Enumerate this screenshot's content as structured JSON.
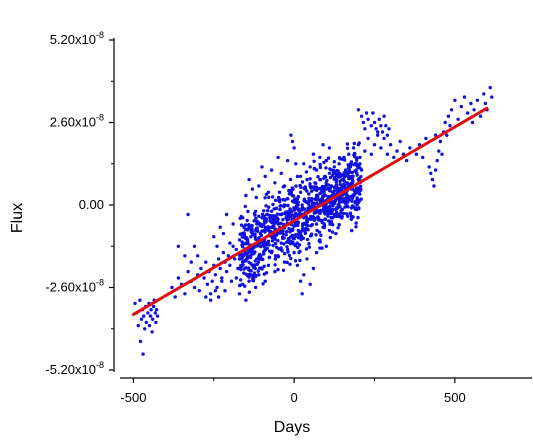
{
  "chart_data": {
    "type": "scatter",
    "xlabel": "Days",
    "ylabel": "Flux",
    "xlim": [
      -520,
      740
    ],
    "ylim": [
      -5.2e-08,
      5.2e-08
    ],
    "x_ticks": [
      {
        "value": -500,
        "label": "-500"
      },
      {
        "value": 0,
        "label": "0"
      },
      {
        "value": 500,
        "label": "500"
      }
    ],
    "x_minor_ticks": [
      -250,
      250
    ],
    "y_ticks": [
      {
        "value": 5.2e-08,
        "mantissa": "5.20x10",
        "exponent": "-8"
      },
      {
        "value": 2.6e-08,
        "mantissa": "2.60x10",
        "exponent": "-8"
      },
      {
        "value": 0,
        "mantissa": "0.00",
        "exponent": ""
      },
      {
        "value": -2.6e-08,
        "mantissa": "-2.60x10",
        "exponent": "-8"
      },
      {
        "value": -5.2e-08,
        "mantissa": "-5.20x10",
        "exponent": "-8"
      }
    ],
    "y_minor_ticks": [
      3.9e-08,
      1.3e-08,
      -1.3e-08,
      -3.9e-08
    ],
    "grid": false,
    "colors": {
      "points": "#1010e0",
      "fit_line": "#e01010",
      "axes": "#000000"
    },
    "series": [
      {
        "type": "scatter",
        "points": [
          [
            -495,
            -3.1e-08
          ],
          [
            -490,
            -3.4e-08
          ],
          [
            -485,
            -3.8e-08
          ],
          [
            -480,
            -3e-08
          ],
          [
            -478,
            -4.3e-08
          ],
          [
            -475,
            -3.6e-08
          ],
          [
            -472,
            -3.3e-08
          ],
          [
            -470,
            -4.7e-08
          ],
          [
            -468,
            -3.5e-08
          ],
          [
            -465,
            -3.9e-08
          ],
          [
            -462,
            -3.2e-08
          ],
          [
            -460,
            -3.7e-08
          ],
          [
            -455,
            -3.4e-08
          ],
          [
            -452,
            -3.1e-08
          ],
          [
            -450,
            -3.8e-08
          ],
          [
            -447,
            -3.5e-08
          ],
          [
            -445,
            -3.3e-08
          ],
          [
            -442,
            -4e-08
          ],
          [
            -440,
            -3.6e-08
          ],
          [
            -437,
            -3.2e-08
          ],
          [
            -435,
            -3e-08
          ],
          [
            -432,
            -3.4e-08
          ],
          [
            -430,
            -3.7e-08
          ],
          [
            -428,
            -3.3e-08
          ],
          [
            -425,
            -3.5e-08
          ],
          [
            -380,
            -2.6e-08
          ],
          [
            -370,
            -2.9e-08
          ],
          [
            -360,
            -2.3e-08
          ],
          [
            -350,
            -2.5e-08
          ],
          [
            -340,
            -2.8e-08
          ],
          [
            -330,
            -2.1e-08
          ],
          [
            -320,
            -2.4e-08
          ],
          [
            -310,
            -2.6e-08
          ],
          [
            -300,
            -2.2e-08
          ],
          [
            -295,
            -2.7e-08
          ],
          [
            -290,
            -2e-08
          ],
          [
            -280,
            -2.3e-08
          ],
          [
            -275,
            -1.8e-08
          ],
          [
            -270,
            -2.5e-08
          ],
          [
            -265,
            -2.1e-08
          ],
          [
            -260,
            -2.8e-08
          ],
          [
            -255,
            -2.4e-08
          ],
          [
            -250,
            -1.9e-08
          ],
          [
            -245,
            -2.2e-08
          ],
          [
            -240,
            -2.6e-08
          ],
          [
            -235,
            -1.7e-08
          ],
          [
            -230,
            -2e-08
          ],
          [
            -225,
            -2.3e-08
          ],
          [
            -220,
            -1.5e-08
          ],
          [
            -215,
            -1.8e-08
          ],
          [
            -210,
            -2.1e-08
          ],
          [
            -205,
            -1.6e-08
          ],
          [
            -200,
            -1.9e-08
          ],
          [
            -195,
            -2.4e-08
          ],
          [
            -190,
            -1.3e-08
          ],
          [
            -185,
            -1.7e-08
          ],
          [
            -180,
            -1.4e-08
          ],
          [
            -175,
            -2e-08
          ],
          [
            -170,
            -1.1e-08
          ],
          [
            -165,
            -1.5e-08
          ],
          [
            -160,
            -1.8e-08
          ],
          [
            -155,
            -9e-09
          ],
          [
            -150,
            -1.2e-08
          ],
          [
            -145,
            -1.6e-08
          ],
          [
            -140,
            -7e-09
          ],
          [
            -135,
            -1e-08
          ],
          [
            -130,
            -1.4e-08
          ],
          [
            -125,
            -5e-09
          ],
          [
            -120,
            -8e-09
          ],
          [
            -115,
            -1.2e-08
          ],
          [
            -110,
            -6e-09
          ],
          [
            -105,
            -9e-09
          ],
          [
            -100,
            -4e-09
          ],
          [
            -95,
            -1.1e-08
          ],
          [
            -90,
            -7e-09
          ],
          [
            -85,
            -3e-09
          ],
          [
            -80,
            -8e-09
          ],
          [
            -75,
            -5e-09
          ],
          [
            -70,
            -2e-09
          ],
          [
            -65,
            -9e-09
          ],
          [
            -60,
            -4e-09
          ],
          [
            -55,
            -1e-09
          ],
          [
            -50,
            -6e-09
          ],
          [
            -45,
            1e-09
          ],
          [
            -40,
            -3e-09
          ],
          [
            -35,
            -7e-09
          ],
          [
            -30,
            0.0
          ],
          [
            -25,
            -4e-09
          ],
          [
            -20,
            2e-09
          ],
          [
            -15,
            -2e-09
          ],
          [
            -10,
            -6e-09
          ],
          [
            -5,
            3e-09
          ],
          [
            0,
            -1e-09
          ],
          [
            5,
            -5e-09
          ],
          [
            10,
            2e-09
          ],
          [
            15,
            -3e-09
          ],
          [
            20,
            4e-09
          ],
          [
            25,
            0.0
          ],
          [
            30,
            -4e-09
          ],
          [
            35,
            5e-09
          ],
          [
            40,
            1e-09
          ],
          [
            45,
            -2e-09
          ],
          [
            50,
            6e-09
          ],
          [
            55,
            2e-09
          ],
          [
            60,
            -1e-09
          ],
          [
            65,
            7e-09
          ],
          [
            70,
            3e-09
          ],
          [
            75,
            0.0
          ],
          [
            80,
            8e-09
          ],
          [
            85,
            4e-09
          ],
          [
            90,
            1e-09
          ],
          [
            95,
            9e-09
          ],
          [
            100,
            5e-09
          ],
          [
            105,
            2e-09
          ],
          [
            110,
            1e-08
          ],
          [
            115,
            6e-09
          ],
          [
            120,
            3e-09
          ],
          [
            125,
            1.2e-08
          ],
          [
            130,
            8e-09
          ],
          [
            135,
            4e-09
          ],
          [
            140,
            1.3e-08
          ],
          [
            145,
            9e-09
          ],
          [
            150,
            6e-09
          ],
          [
            155,
            1.5e-08
          ],
          [
            160,
            1.1e-08
          ],
          [
            165,
            7e-09
          ],
          [
            170,
            1.6e-08
          ],
          [
            175,
            1.2e-08
          ],
          [
            180,
            9e-09
          ],
          [
            185,
            1.8e-08
          ],
          [
            190,
            1.3e-08
          ],
          [
            195,
            1e-08
          ],
          [
            200,
            1.9e-08
          ],
          [
            205,
            1.5e-08
          ],
          [
            210,
            1.1e-08
          ],
          [
            -160,
            -4e-09
          ],
          [
            -150,
            3e-09
          ],
          [
            -140,
            8e-09
          ],
          [
            -130,
            5e-09
          ],
          [
            -120,
            -2e-09
          ],
          [
            -110,
            6e-09
          ],
          [
            -100,
            1.2e-08
          ],
          [
            -90,
            9e-09
          ],
          [
            -80,
            4e-09
          ],
          [
            -70,
            1.1e-08
          ],
          [
            -60,
            7e-09
          ],
          [
            -50,
            1.5e-08
          ],
          [
            -40,
            1e-08
          ],
          [
            -30,
            6e-09
          ],
          [
            -20,
            1.4e-08
          ],
          [
            -10,
            2.2e-08
          ],
          [
            -5,
            2e-08
          ],
          [
            0,
            1.8e-08
          ],
          [
            5,
            1.3e-08
          ],
          [
            10,
            9e-09
          ],
          [
            -220,
            -9e-09
          ],
          [
            -210,
            -3e-09
          ],
          [
            -200,
            -1.2e-08
          ],
          [
            -190,
            -6e-09
          ],
          [
            -180,
            -2.3e-08
          ],
          [
            -170,
            -2.8e-08
          ],
          [
            -160,
            -2.5e-08
          ],
          [
            -150,
            -3e-08
          ],
          [
            -140,
            -2.4e-08
          ],
          [
            -130,
            -1.9e-08
          ],
          [
            -120,
            -2.6e-08
          ],
          [
            -110,
            -2.2e-08
          ],
          [
            -100,
            -1.7e-08
          ],
          [
            -90,
            -2.4e-08
          ],
          [
            -80,
            -1.9e-08
          ],
          [
            -70,
            -1.5e-08
          ],
          [
            -60,
            -2.1e-08
          ],
          [
            -50,
            -1.6e-08
          ],
          [
            -40,
            -1.2e-08
          ],
          [
            -30,
            -1.8e-08
          ],
          [
            -20,
            -1.4e-08
          ],
          [
            -10,
            -1e-08
          ],
          [
            0,
            -1.5e-08
          ],
          [
            10,
            -1.9e-08
          ],
          [
            20,
            -2.4e-08
          ],
          [
            25,
            -2.8e-08
          ],
          [
            30,
            -2.2e-08
          ],
          [
            40,
            -1.7e-08
          ],
          [
            50,
            -2.5e-08
          ],
          [
            60,
            -2e-08
          ],
          [
            70,
            -1.5e-08
          ],
          [
            80,
            -1.1e-08
          ],
          [
            90,
            -7e-09
          ],
          [
            100,
            -1.3e-08
          ],
          [
            110,
            -8e-09
          ],
          [
            120,
            -4e-09
          ],
          [
            130,
            -9e-09
          ],
          [
            140,
            -3e-09
          ],
          [
            150,
            1e-09
          ],
          [
            160,
            5e-09
          ],
          [
            -300,
            -1.6e-08
          ],
          [
            -310,
            -1.3e-08
          ],
          [
            -320,
            -1.8e-08
          ],
          [
            -340,
            -1.6e-08
          ],
          [
            -360,
            -1.3e-08
          ],
          [
            -330,
            -3e-09
          ],
          [
            -250,
            -1e-08
          ],
          [
            -240,
            -1.3e-08
          ],
          [
            -230,
            -7e-09
          ],
          [
            -275,
            -2.9e-08
          ],
          [
            -260,
            -3e-08
          ],
          [
            -245,
            -2.7e-08
          ],
          [
            -235,
            -2.9e-08
          ],
          [
            -225,
            -2.4e-08
          ],
          [
            -215,
            -2.7e-08
          ],
          [
            20,
            9e-09
          ],
          [
            30,
            1.3e-08
          ],
          [
            40,
            8e-09
          ],
          [
            50,
            1.2e-08
          ],
          [
            60,
            1.6e-08
          ],
          [
            70,
            1.1e-08
          ],
          [
            80,
            1.5e-08
          ],
          [
            90,
            1.9e-08
          ],
          [
            100,
            1.4e-08
          ],
          [
            110,
            1.8e-08
          ],
          [
            220,
            1.7e-08
          ],
          [
            230,
            2.1e-08
          ],
          [
            240,
            1.6e-08
          ],
          [
            250,
            1.9e-08
          ],
          [
            260,
            2.3e-08
          ],
          [
            270,
            1.8e-08
          ],
          [
            280,
            2.1e-08
          ],
          [
            290,
            1.6e-08
          ],
          [
            300,
            1.9e-08
          ],
          [
            310,
            1.5e-08
          ],
          [
            320,
            1.7e-08
          ],
          [
            330,
            2e-08
          ],
          [
            340,
            1.6e-08
          ],
          [
            350,
            1.4e-08
          ],
          [
            360,
            1.8e-08
          ],
          [
            200,
            3e-08
          ],
          [
            210,
            2.8e-08
          ],
          [
            215,
            2.6e-08
          ],
          [
            220,
            2.4e-08
          ],
          [
            225,
            2.9e-08
          ],
          [
            230,
            2.7e-08
          ],
          [
            240,
            2.5e-08
          ],
          [
            245,
            2.9e-08
          ],
          [
            250,
            2.6e-08
          ],
          [
            255,
            2.4e-08
          ],
          [
            260,
            2.2e-08
          ],
          [
            265,
            2.7e-08
          ],
          [
            270,
            2.5e-08
          ],
          [
            275,
            2.3e-08
          ],
          [
            280,
            2.8e-08
          ],
          [
            285,
            2.5e-08
          ],
          [
            290,
            2.2e-08
          ],
          [
            295,
            2.4e-08
          ],
          [
            420,
            1.2e-08
          ],
          [
            425,
            1e-08
          ],
          [
            430,
            8e-09
          ],
          [
            435,
            6e-09
          ],
          [
            440,
            1.1e-08
          ],
          [
            445,
            1.4e-08
          ],
          [
            450,
            1.7e-08
          ],
          [
            455,
            2e-08
          ],
          [
            460,
            1.6e-08
          ],
          [
            465,
            2.3e-08
          ],
          [
            470,
            2.6e-08
          ],
          [
            475,
            2.2e-08
          ],
          [
            480,
            2.8e-08
          ],
          [
            485,
            2.5e-08
          ],
          [
            490,
            3e-08
          ],
          [
            500,
            3.3e-08
          ],
          [
            510,
            2.7e-08
          ],
          [
            520,
            3.1e-08
          ],
          [
            530,
            3.4e-08
          ],
          [
            540,
            2.9e-08
          ],
          [
            550,
            3.2e-08
          ],
          [
            555,
            2.6e-08
          ],
          [
            560,
            3e-08
          ],
          [
            570,
            3.3e-08
          ],
          [
            580,
            2.8e-08
          ],
          [
            590,
            3.5e-08
          ],
          [
            595,
            3.2e-08
          ],
          [
            600,
            3e-08
          ],
          [
            610,
            3.7e-08
          ],
          [
            615,
            3.4e-08
          ],
          [
            380,
            1.6e-08
          ],
          [
            390,
            1.9e-08
          ],
          [
            400,
            1.5e-08
          ],
          [
            410,
            2.1e-08
          ],
          [
            440,
            2.2e-08
          ]
        ]
      }
    ],
    "fit_line": {
      "x": [
        -500,
        600
      ],
      "y": [
        -3.45e-08,
        3.05e-08
      ]
    }
  }
}
